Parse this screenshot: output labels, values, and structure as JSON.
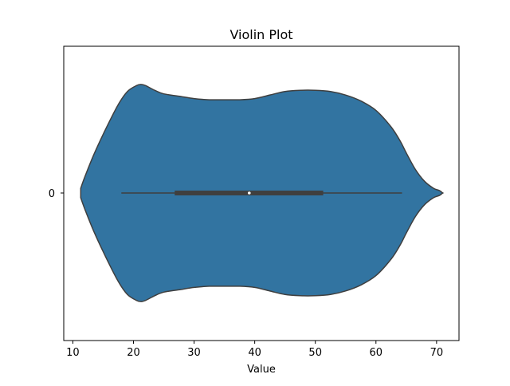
{
  "chart_data": {
    "type": "violin",
    "title": "Violin Plot",
    "xlabel": "Value",
    "ylabel": "",
    "category_labels": [
      "0"
    ],
    "xlim": [
      8.5,
      73.7
    ],
    "xticks": [
      10,
      20,
      30,
      40,
      50,
      60,
      70
    ],
    "fill_color": "#3274a1",
    "edge_color": "#3f3f3f",
    "box_color": "#3f3f3f",
    "median_color": "#ffffff",
    "box": {
      "whisker_low": 18.0,
      "q1": 26.8,
      "median": 39.1,
      "q3": 51.3,
      "whisker_high": 64.3
    },
    "density": {
      "x": [
        11.3,
        12.0,
        13.5,
        15.5,
        17.5,
        19.0,
        20.5,
        21.2,
        22.0,
        23.5,
        25.0,
        27.5,
        30.0,
        32.5,
        35.0,
        37.5,
        40.0,
        42.5,
        45.0,
        47.5,
        50.0,
        52.5,
        55.0,
        57.5,
        60.0,
        62.5,
        64.0,
        65.0,
        66.5,
        68.0,
        69.5,
        70.5,
        71.0
      ],
      "half_width": [
        0.04,
        0.14,
        0.33,
        0.55,
        0.75,
        0.86,
        0.91,
        0.92,
        0.91,
        0.87,
        0.84,
        0.82,
        0.8,
        0.79,
        0.79,
        0.79,
        0.8,
        0.83,
        0.86,
        0.87,
        0.87,
        0.86,
        0.83,
        0.78,
        0.7,
        0.56,
        0.44,
        0.34,
        0.2,
        0.1,
        0.04,
        0.02,
        0.0
      ]
    }
  }
}
